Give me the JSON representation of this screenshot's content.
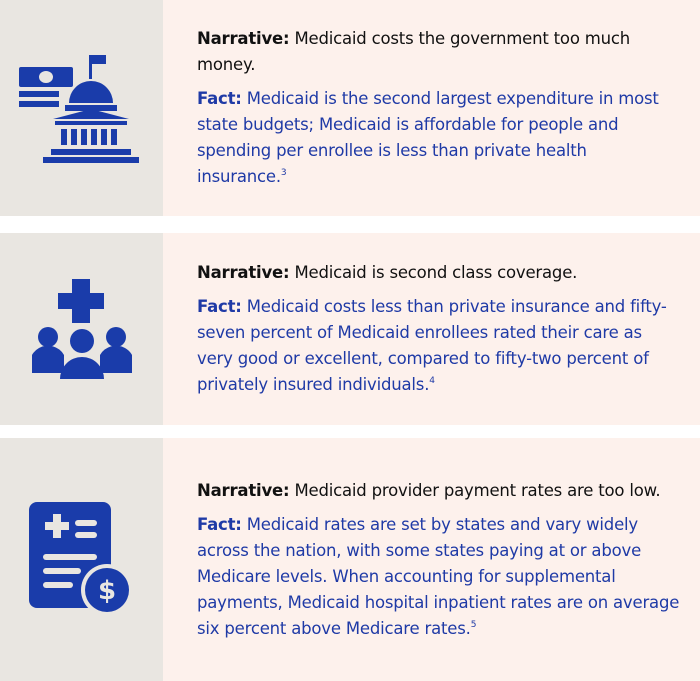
{
  "items": [
    {
      "narrative_label": "Narrative:",
      "narrative": "Medicaid costs the government too much money.",
      "fact_label": "Fact:",
      "fact": "Medicaid is the second largest expenditure in most state budgets; Medicaid is affordable for people and spending per enrollee is less than private health insurance.",
      "footnote": "3"
    },
    {
      "narrative_label": "Narrative:",
      "narrative": "Medicaid is second class coverage.",
      "fact_label": "Fact:",
      "fact": "Medicaid costs less than private insurance and fifty-seven percent of Medicaid enrollees rated their care as very good or excellent, compared to fifty-two percent of privately insured individuals.",
      "footnote": "4"
    },
    {
      "narrative_label": "Narrative:",
      "narrative": "Medicaid provider payment rates are too low.",
      "fact_label": "Fact:",
      "fact": "Medicaid rates are set by states and vary widely across the nation, with some states paying at or above Medicare levels. When accounting for supplemental payments, Medicaid hospital inpatient rates are on average six percent above Medicare rates.",
      "footnote": "5"
    }
  ]
}
